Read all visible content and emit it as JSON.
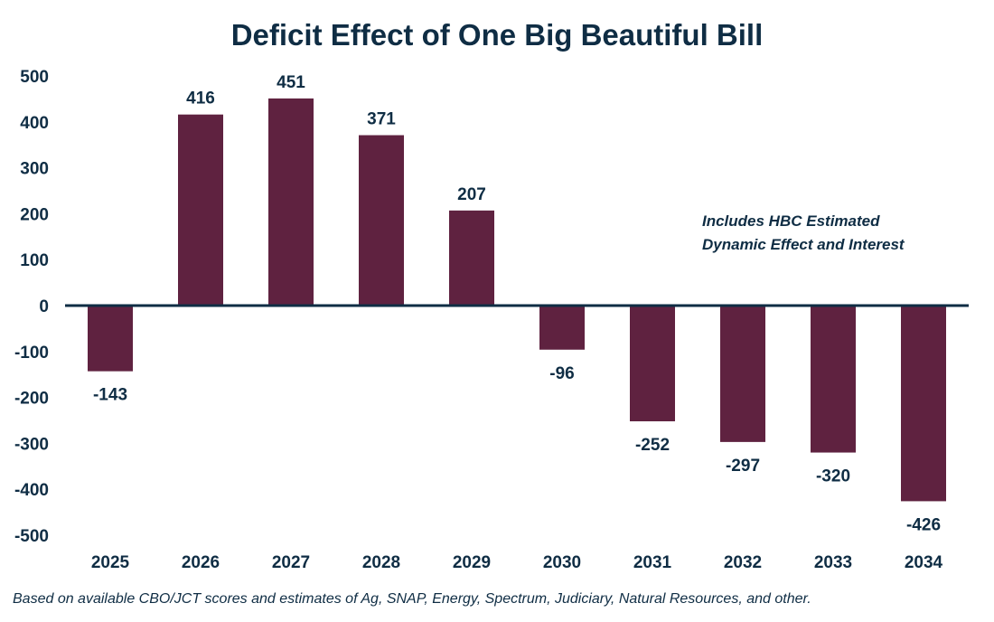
{
  "chart_data": {
    "type": "bar",
    "title": "Deficit Effect of One Big Beautiful Bill",
    "xlabel": "",
    "ylabel": "",
    "categories": [
      "2025",
      "2026",
      "2027",
      "2028",
      "2029",
      "2030",
      "2031",
      "2032",
      "2033",
      "2034"
    ],
    "values": [
      -143,
      416,
      451,
      371,
      207,
      -96,
      -252,
      -297,
      -320,
      -426
    ],
    "data_labels": [
      "-143",
      "416",
      "451",
      "371",
      "207",
      "-96",
      "-252",
      "-297",
      "-320",
      "-426"
    ],
    "ylim": [
      -500,
      500
    ],
    "yticks": [
      500,
      400,
      300,
      200,
      100,
      0,
      -100,
      -200,
      -300,
      -400,
      -500
    ],
    "ytick_labels": [
      "500",
      "400",
      "300",
      "200",
      "100",
      "0",
      "-100",
      "-200",
      "-300",
      "-400",
      "-500"
    ],
    "grid": false,
    "legend": null,
    "annotations": [
      "Includes HBC Estimated",
      "Dynamic Effect and Interest"
    ],
    "footnote": "Based on available CBO/JCT scores and estimates of Ag, SNAP, Energy, Spectrum, Judiciary, Natural Resources, and other.",
    "colors": {
      "bar": "#5f2240",
      "text": "#0f2d44",
      "axis": "#0f2d44"
    }
  }
}
